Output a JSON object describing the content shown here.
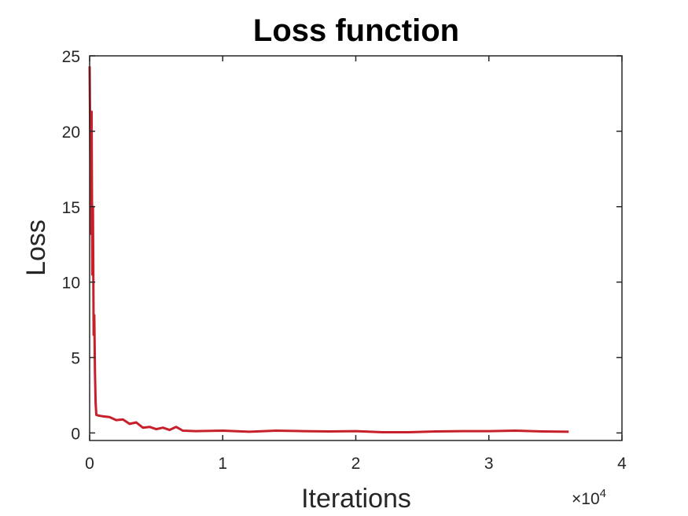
{
  "chart_data": {
    "type": "line",
    "title": "Loss function",
    "xlabel": "Iterations",
    "ylabel": "Loss",
    "x_exponent_label": {
      "prefix": "×10",
      "exponent": "4"
    },
    "xlim": [
      0,
      4
    ],
    "ylim": [
      -0.5,
      25
    ],
    "x_ticks": [
      0,
      1,
      2,
      3,
      4
    ],
    "y_ticks": [
      0,
      5,
      10,
      15,
      20,
      25
    ],
    "grid": false,
    "series": [
      {
        "color": "#c8202a",
        "x": [
          0,
          0.01,
          0.015,
          0.02,
          0.025,
          0.03,
          0.035,
          0.04,
          0.045,
          0.05,
          0.07,
          0.1,
          0.15,
          0.2,
          0.25,
          0.3,
          0.35,
          0.4,
          0.45,
          0.5,
          0.55,
          0.6,
          0.65,
          0.7,
          0.8,
          1.0,
          1.2,
          1.4,
          1.6,
          1.8,
          2.0,
          2.2,
          2.4,
          2.6,
          2.8,
          3.0,
          3.2,
          3.4,
          3.6
        ],
        "y": [
          24.3,
          13.2,
          21.3,
          10.5,
          15.0,
          6.5,
          7.8,
          4.0,
          2.0,
          1.2,
          1.15,
          1.1,
          1.05,
          0.85,
          0.9,
          0.6,
          0.7,
          0.35,
          0.4,
          0.25,
          0.35,
          0.2,
          0.4,
          0.15,
          0.12,
          0.15,
          0.08,
          0.15,
          0.12,
          0.1,
          0.12,
          0.05,
          0.05,
          0.1,
          0.12,
          0.12,
          0.15,
          0.1,
          0.08
        ]
      }
    ]
  }
}
